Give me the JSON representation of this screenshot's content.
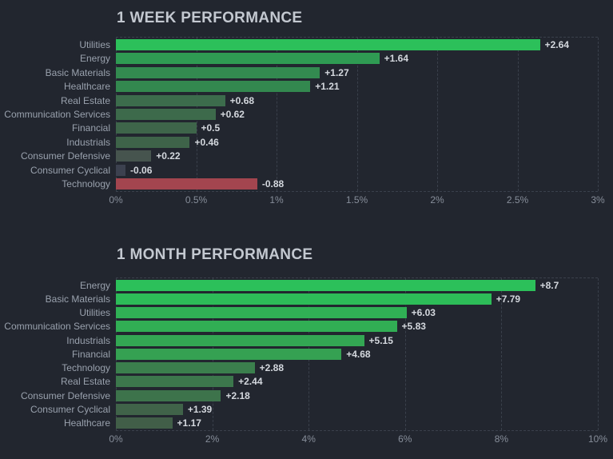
{
  "theme": {
    "background": "#22262f",
    "title_color": "#c3c8d0",
    "category_label_color": "#99a1ad",
    "value_label_color": "#d4d8de",
    "tick_label_color": "#878e9a",
    "grid_color": "#3a404b",
    "positive_bright_color": "#2cc05a",
    "negative_color": "#a3454f"
  },
  "chart_data": [
    {
      "type": "bar",
      "orientation": "horizontal",
      "title": "1 WEEK PERFORMANCE",
      "categories": [
        "Utilities",
        "Energy",
        "Basic Materials",
        "Healthcare",
        "Real Estate",
        "Communication Services",
        "Financial",
        "Industrials",
        "Consumer Defensive",
        "Consumer Cyclical",
        "Technology"
      ],
      "values": [
        2.64,
        1.64,
        1.27,
        1.21,
        0.68,
        0.62,
        0.5,
        0.46,
        0.22,
        -0.06,
        -0.88
      ],
      "value_labels": [
        "+2.64",
        "+1.64",
        "+1.27",
        "+1.21",
        "+0.68",
        "+0.62",
        "+0.5",
        "+0.46",
        "+0.22",
        "-0.06",
        "-0.88"
      ],
      "bar_colors": [
        "#2cc05a",
        "#2f9b53",
        "#338a50",
        "#33884f",
        "#3c6c4c",
        "#3d6a4b",
        "#3e654a",
        "#3e6349",
        "#46544e",
        "#3c414f",
        "#a3454f"
      ],
      "xlabel": "",
      "ylabel": "",
      "xlim": [
        0,
        3
      ],
      "x_tick_labels": [
        "0%",
        "0.5%",
        "1%",
        "1.5%",
        "2%",
        "2.5%",
        "3%"
      ],
      "x_tick_values": [
        0,
        0.5,
        1,
        1.5,
        2,
        2.5,
        3
      ],
      "grid": true,
      "legend": false,
      "note": "negative values drawn as magnitude bars colored red/gray"
    },
    {
      "type": "bar",
      "orientation": "horizontal",
      "title": "1 MONTH PERFORMANCE",
      "categories": [
        "Energy",
        "Basic Materials",
        "Utilities",
        "Communication Services",
        "Industrials",
        "Financial",
        "Technology",
        "Real Estate",
        "Consumer Defensive",
        "Consumer Cyclical",
        "Healthcare"
      ],
      "values": [
        8.7,
        7.79,
        6.03,
        5.83,
        5.15,
        4.68,
        2.88,
        2.44,
        2.18,
        1.39,
        1.17
      ],
      "value_labels": [
        "+8.7",
        "+7.79",
        "+6.03",
        "+5.83",
        "+5.15",
        "+4.68",
        "+2.88",
        "+2.44",
        "+2.18",
        "+1.39",
        "+1.17"
      ],
      "bar_colors": [
        "#2cc05a",
        "#2dbc58",
        "#30b055",
        "#31ae54",
        "#33a753",
        "#35a152",
        "#3b7f4d",
        "#3c774c",
        "#3d734b",
        "#406349",
        "#415e48"
      ],
      "xlabel": "",
      "ylabel": "",
      "xlim": [
        0,
        10
      ],
      "x_tick_labels": [
        "0%",
        "2%",
        "4%",
        "6%",
        "8%",
        "10%"
      ],
      "x_tick_values": [
        0,
        2,
        4,
        6,
        8,
        10
      ],
      "grid": true,
      "legend": false
    }
  ]
}
